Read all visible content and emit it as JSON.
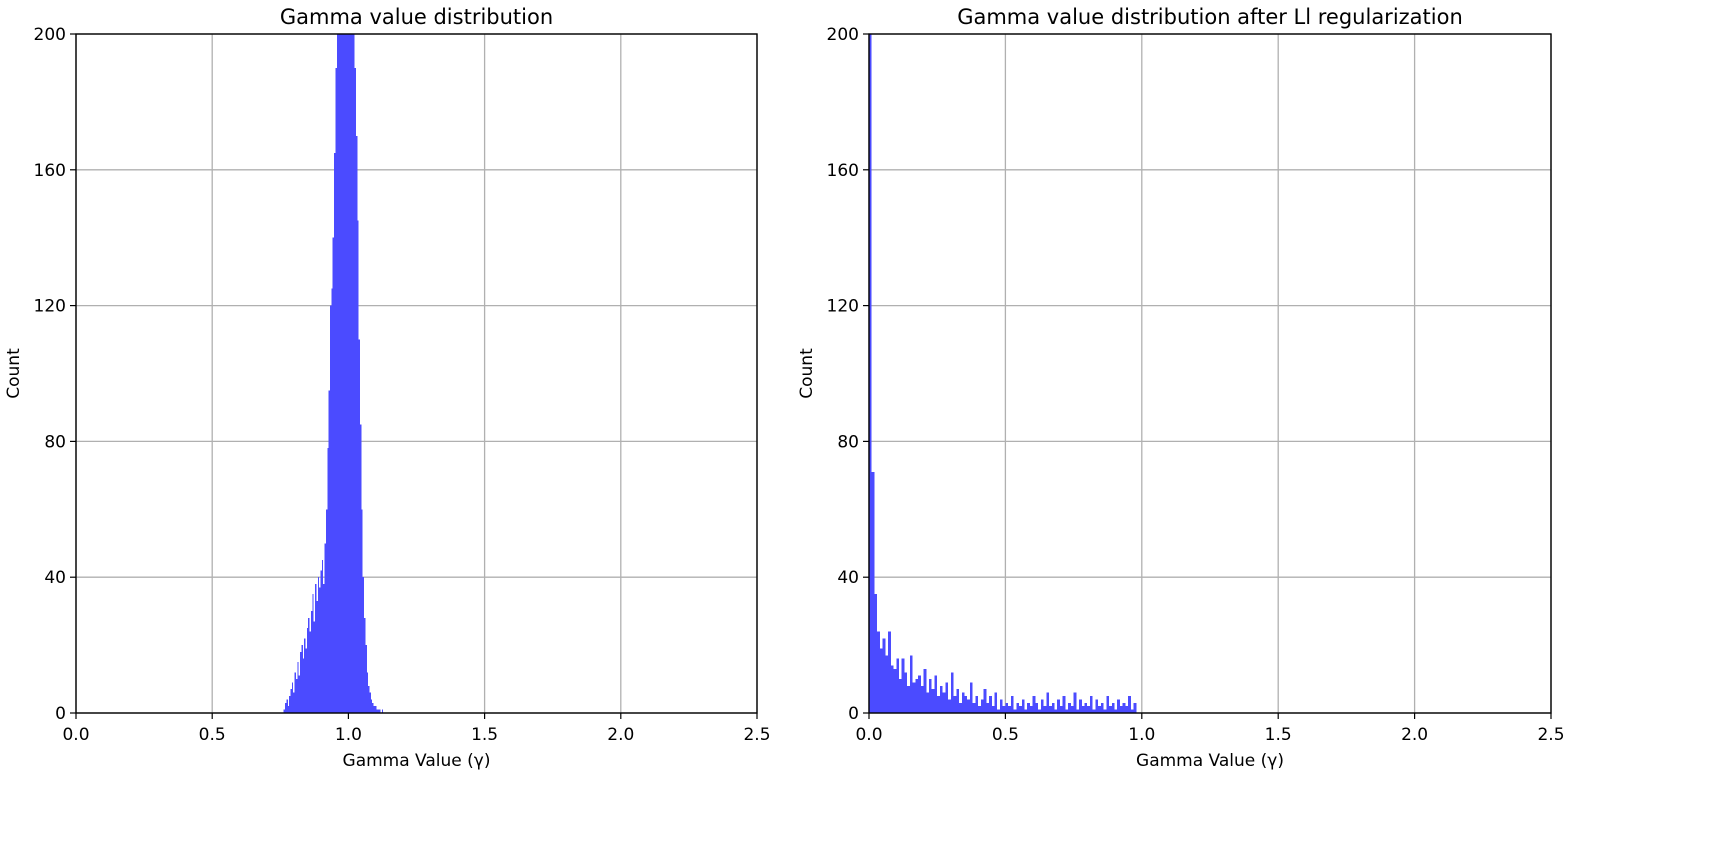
{
  "chart_data": [
    {
      "type": "bar",
      "title": "Gamma value distribution",
      "xlabel": "Gamma Value (γ)",
      "ylabel": "Count",
      "xlim": [
        0,
        2.5
      ],
      "ylim": [
        0,
        200
      ],
      "xticks": [
        "0.0",
        "0.5",
        "1.0",
        "1.5",
        "2.0",
        "2.5"
      ],
      "yticks": [
        "0",
        "40",
        "80",
        "120",
        "160",
        "200"
      ],
      "grid": true,
      "bar_color": "#4b4bff",
      "bin_width": 0.005,
      "x": [
        0.765,
        0.77,
        0.775,
        0.78,
        0.785,
        0.79,
        0.795,
        0.8,
        0.805,
        0.81,
        0.815,
        0.82,
        0.825,
        0.83,
        0.835,
        0.84,
        0.845,
        0.85,
        0.855,
        0.86,
        0.865,
        0.87,
        0.875,
        0.88,
        0.885,
        0.89,
        0.895,
        0.9,
        0.905,
        0.91,
        0.915,
        0.92,
        0.925,
        0.93,
        0.935,
        0.94,
        0.945,
        0.95,
        0.955,
        0.96,
        0.965,
        0.97,
        0.975,
        0.98,
        0.985,
        0.99,
        0.995,
        1.0,
        1.005,
        1.01,
        1.015,
        1.02,
        1.025,
        1.03,
        1.035,
        1.04,
        1.045,
        1.05,
        1.055,
        1.06,
        1.065,
        1.07,
        1.075,
        1.08,
        1.085,
        1.09,
        1.095,
        1.1,
        1.105,
        1.11,
        1.115,
        1.12,
        1.125
      ],
      "values": [
        1,
        3,
        4,
        2,
        5,
        7,
        9,
        6,
        12,
        10,
        15,
        11,
        18,
        20,
        16,
        22,
        19,
        25,
        28,
        24,
        30,
        35,
        27,
        38,
        33,
        40,
        37,
        42,
        45,
        38,
        50,
        60,
        78,
        95,
        120,
        125,
        140,
        165,
        190,
        200,
        200,
        200,
        200,
        200,
        200,
        200,
        200,
        200,
        200,
        200,
        200,
        200,
        190,
        170,
        145,
        110,
        85,
        60,
        40,
        28,
        20,
        12,
        8,
        6,
        4,
        3,
        2,
        2,
        1,
        1,
        1,
        0,
        1
      ]
    },
    {
      "type": "bar",
      "title": "Gamma value distribution after Ll regularization",
      "xlabel": "Gamma Value (γ)",
      "ylabel": "Count",
      "xlim": [
        0,
        2.5
      ],
      "ylim": [
        0,
        200
      ],
      "xticks": [
        "0.0",
        "0.5",
        "1.0",
        "1.5",
        "2.0",
        "2.5"
      ],
      "yticks": [
        "0",
        "40",
        "80",
        "120",
        "160",
        "200"
      ],
      "grid": true,
      "bar_color": "#4b4bff",
      "bin_width": 0.01,
      "x": [
        0.005,
        0.015,
        0.025,
        0.035,
        0.045,
        0.055,
        0.065,
        0.075,
        0.085,
        0.095,
        0.105,
        0.115,
        0.125,
        0.135,
        0.145,
        0.155,
        0.165,
        0.175,
        0.185,
        0.195,
        0.205,
        0.215,
        0.225,
        0.235,
        0.245,
        0.255,
        0.265,
        0.275,
        0.285,
        0.295,
        0.305,
        0.315,
        0.325,
        0.335,
        0.345,
        0.355,
        0.365,
        0.375,
        0.385,
        0.395,
        0.405,
        0.415,
        0.425,
        0.435,
        0.445,
        0.455,
        0.465,
        0.475,
        0.485,
        0.495,
        0.505,
        0.515,
        0.525,
        0.535,
        0.545,
        0.555,
        0.565,
        0.575,
        0.585,
        0.595,
        0.605,
        0.615,
        0.625,
        0.635,
        0.645,
        0.655,
        0.665,
        0.675,
        0.685,
        0.695,
        0.705,
        0.715,
        0.725,
        0.735,
        0.745,
        0.755,
        0.765,
        0.775,
        0.785,
        0.795,
        0.805,
        0.815,
        0.825,
        0.835,
        0.845,
        0.855,
        0.865,
        0.875,
        0.885,
        0.895,
        0.905,
        0.915,
        0.925,
        0.935,
        0.945,
        0.955,
        0.965,
        0.975
      ],
      "values": [
        200,
        71,
        35,
        24,
        19,
        22,
        17,
        24,
        14,
        13,
        16,
        10,
        16,
        12,
        8,
        17,
        9,
        10,
        11,
        8,
        13,
        6,
        10,
        7,
        11,
        5,
        8,
        6,
        9,
        4,
        12,
        5,
        7,
        3,
        6,
        5,
        4,
        9,
        3,
        5,
        2,
        4,
        7,
        3,
        5,
        2,
        6,
        1,
        4,
        2,
        3,
        2,
        5,
        1,
        3,
        2,
        4,
        1,
        3,
        2,
        5,
        3,
        1,
        4,
        2,
        6,
        2,
        3,
        1,
        4,
        2,
        5,
        1,
        3,
        2,
        6,
        1,
        4,
        2,
        3,
        2,
        5,
        1,
        4,
        2,
        3,
        1,
        5,
        2,
        3,
        1,
        4,
        2,
        3,
        2,
        5,
        1,
        3
      ]
    }
  ]
}
